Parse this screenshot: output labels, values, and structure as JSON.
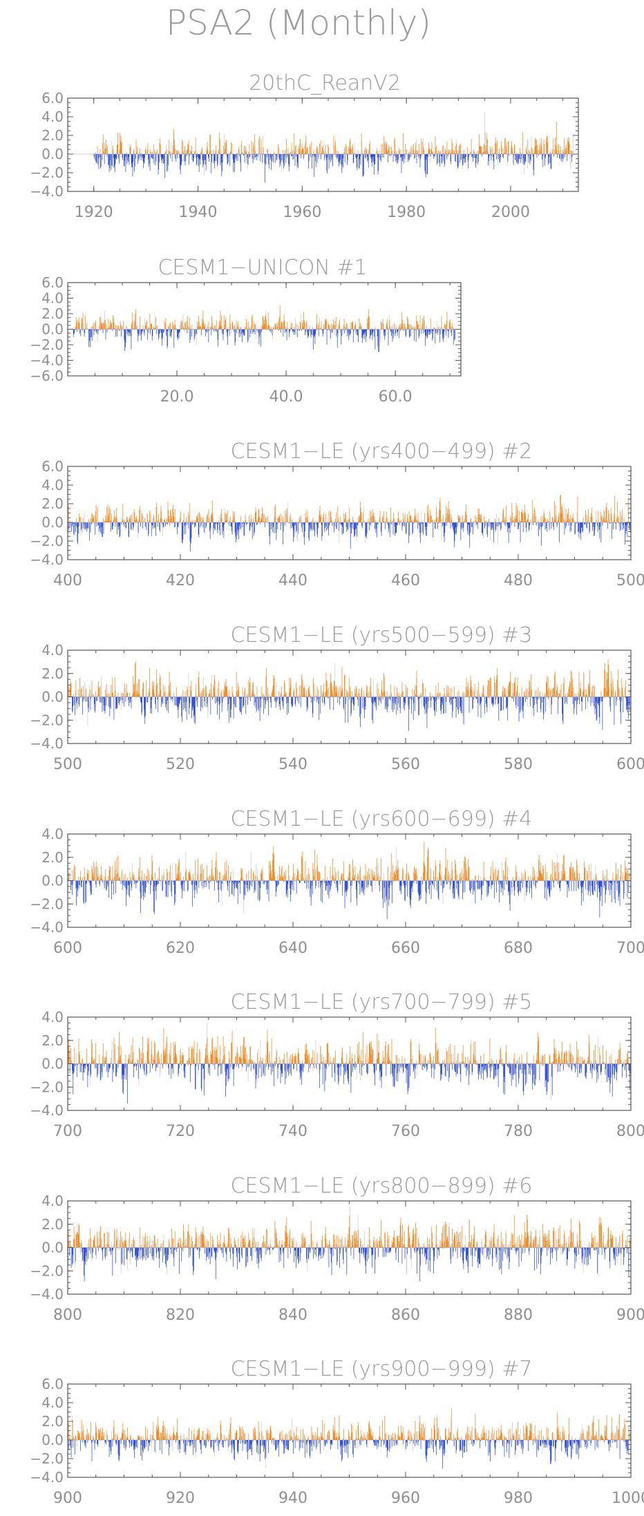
{
  "figure_title": "PSA2 (Monthly)",
  "colors": {
    "positive": "#f07f10",
    "negative": "#1e3fd8",
    "faint": "#c9c9c9",
    "frame": "#555555",
    "text": "#9a9a9a"
  },
  "chart_data": [
    {
      "type": "bar",
      "title": "20thC_ReanV2",
      "x_range": [
        1920,
        2011
      ],
      "xlim": [
        1915,
        2013
      ],
      "ylim": [
        -4.0,
        6.0
      ],
      "x_ticks": [
        1920,
        1940,
        1960,
        1980,
        2000
      ],
      "x_tick_labels": [
        "1920",
        "1940",
        "1960",
        "1980",
        "2000"
      ],
      "y_ticks": [
        6.0,
        4.0,
        2.0,
        0.0,
        -2.0,
        -4.0
      ],
      "y_tick_labels": [
        "6.0",
        "4.0",
        "2.0",
        "0.0",
        "−2.0",
        "−4.0"
      ],
      "amplitude": 0.9,
      "seed": 11
    },
    {
      "type": "bar",
      "title": "CESM1−UNICON          #1",
      "x_range": [
        1,
        70
      ],
      "xlim": [
        0,
        72
      ],
      "ylim": [
        -6.0,
        6.0
      ],
      "x_ticks": [
        20,
        40,
        60
      ],
      "x_tick_labels": [
        "20.0",
        "40.0",
        "60.0"
      ],
      "y_ticks": [
        6.0,
        4.0,
        2.0,
        0.0,
        -2.0,
        -4.0,
        -6.0
      ],
      "y_tick_labels": [
        "6.0",
        "4.0",
        "2.0",
        "0.0",
        "−2.0",
        "−4.0",
        "−6.0"
      ],
      "amplitude": 0.9,
      "seed": 23
    },
    {
      "type": "bar",
      "title": "CESM1−LE (yrs400−499) #2",
      "x_range": [
        400,
        499
      ],
      "xlim": [
        400,
        500
      ],
      "ylim": [
        -4.0,
        6.0
      ],
      "x_ticks": [
        400,
        420,
        440,
        460,
        480,
        500
      ],
      "x_tick_labels": [
        "400",
        "420",
        "440",
        "460",
        "480",
        "500"
      ],
      "y_ticks": [
        6.0,
        4.0,
        2.0,
        0.0,
        -2.0,
        -4.0
      ],
      "y_tick_labels": [
        "6.0",
        "4.0",
        "2.0",
        "0.0",
        "−2.0",
        "−4.0"
      ],
      "amplitude": 0.9,
      "seed": 37
    },
    {
      "type": "bar",
      "title": "CESM1−LE (yrs500−599) #3",
      "x_range": [
        500,
        599
      ],
      "xlim": [
        500,
        600
      ],
      "ylim": [
        -4.0,
        4.0
      ],
      "x_ticks": [
        500,
        520,
        540,
        560,
        580,
        600
      ],
      "x_tick_labels": [
        "500",
        "520",
        "540",
        "560",
        "580",
        "600"
      ],
      "y_ticks": [
        4.0,
        2.0,
        0.0,
        -2.0,
        -4.0
      ],
      "y_tick_labels": [
        "4.0",
        "2.0",
        "0.0",
        "−2.0",
        "−4.0"
      ],
      "amplitude": 0.95,
      "seed": 41
    },
    {
      "type": "bar",
      "title": "CESM1−LE (yrs600−699) #4",
      "x_range": [
        600,
        699
      ],
      "xlim": [
        600,
        700
      ],
      "ylim": [
        -4.0,
        4.0
      ],
      "x_ticks": [
        600,
        620,
        640,
        660,
        680,
        700
      ],
      "x_tick_labels": [
        "600",
        "620",
        "640",
        "660",
        "680",
        "700"
      ],
      "y_ticks": [
        4.0,
        2.0,
        0.0,
        -2.0,
        -4.0
      ],
      "y_tick_labels": [
        "4.0",
        "2.0",
        "0.0",
        "−2.0",
        "−4.0"
      ],
      "amplitude": 0.95,
      "seed": 53
    },
    {
      "type": "bar",
      "title": "CESM1−LE (yrs700−799) #5",
      "x_range": [
        700,
        799
      ],
      "xlim": [
        700,
        800
      ],
      "ylim": [
        -4.0,
        4.0
      ],
      "x_ticks": [
        700,
        720,
        740,
        760,
        780,
        800
      ],
      "x_tick_labels": [
        "700",
        "720",
        "740",
        "760",
        "780",
        "800"
      ],
      "y_ticks": [
        4.0,
        2.0,
        0.0,
        -2.0,
        -4.0
      ],
      "y_tick_labels": [
        "4.0",
        "2.0",
        "0.0",
        "−2.0",
        "−4.0"
      ],
      "amplitude": 0.95,
      "seed": 67
    },
    {
      "type": "bar",
      "title": "CESM1−LE (yrs800−899) #6",
      "x_range": [
        800,
        899
      ],
      "xlim": [
        800,
        900
      ],
      "ylim": [
        -4.0,
        4.0
      ],
      "x_ticks": [
        800,
        820,
        840,
        860,
        880,
        900
      ],
      "x_tick_labels": [
        "800",
        "820",
        "840",
        "860",
        "880",
        "900"
      ],
      "y_ticks": [
        4.0,
        2.0,
        0.0,
        -2.0,
        -4.0
      ],
      "y_tick_labels": [
        "4.0",
        "2.0",
        "0.0",
        "−2.0",
        "−4.0"
      ],
      "amplitude": 0.95,
      "seed": 79
    },
    {
      "type": "bar",
      "title": "CESM1−LE (yrs900−999) #7",
      "x_range": [
        900,
        999
      ],
      "xlim": [
        900,
        1000
      ],
      "ylim": [
        -4.0,
        6.0
      ],
      "x_ticks": [
        900,
        920,
        940,
        960,
        980,
        1000
      ],
      "x_tick_labels": [
        "900",
        "920",
        "940",
        "960",
        "980",
        "1000"
      ],
      "y_ticks": [
        6.0,
        4.0,
        2.0,
        0.0,
        -2.0,
        -4.0
      ],
      "y_tick_labels": [
        "6.0",
        "4.0",
        "2.0",
        "0.0",
        "−2.0",
        "−4.0"
      ],
      "amplitude": 0.9,
      "seed": 97
    }
  ]
}
